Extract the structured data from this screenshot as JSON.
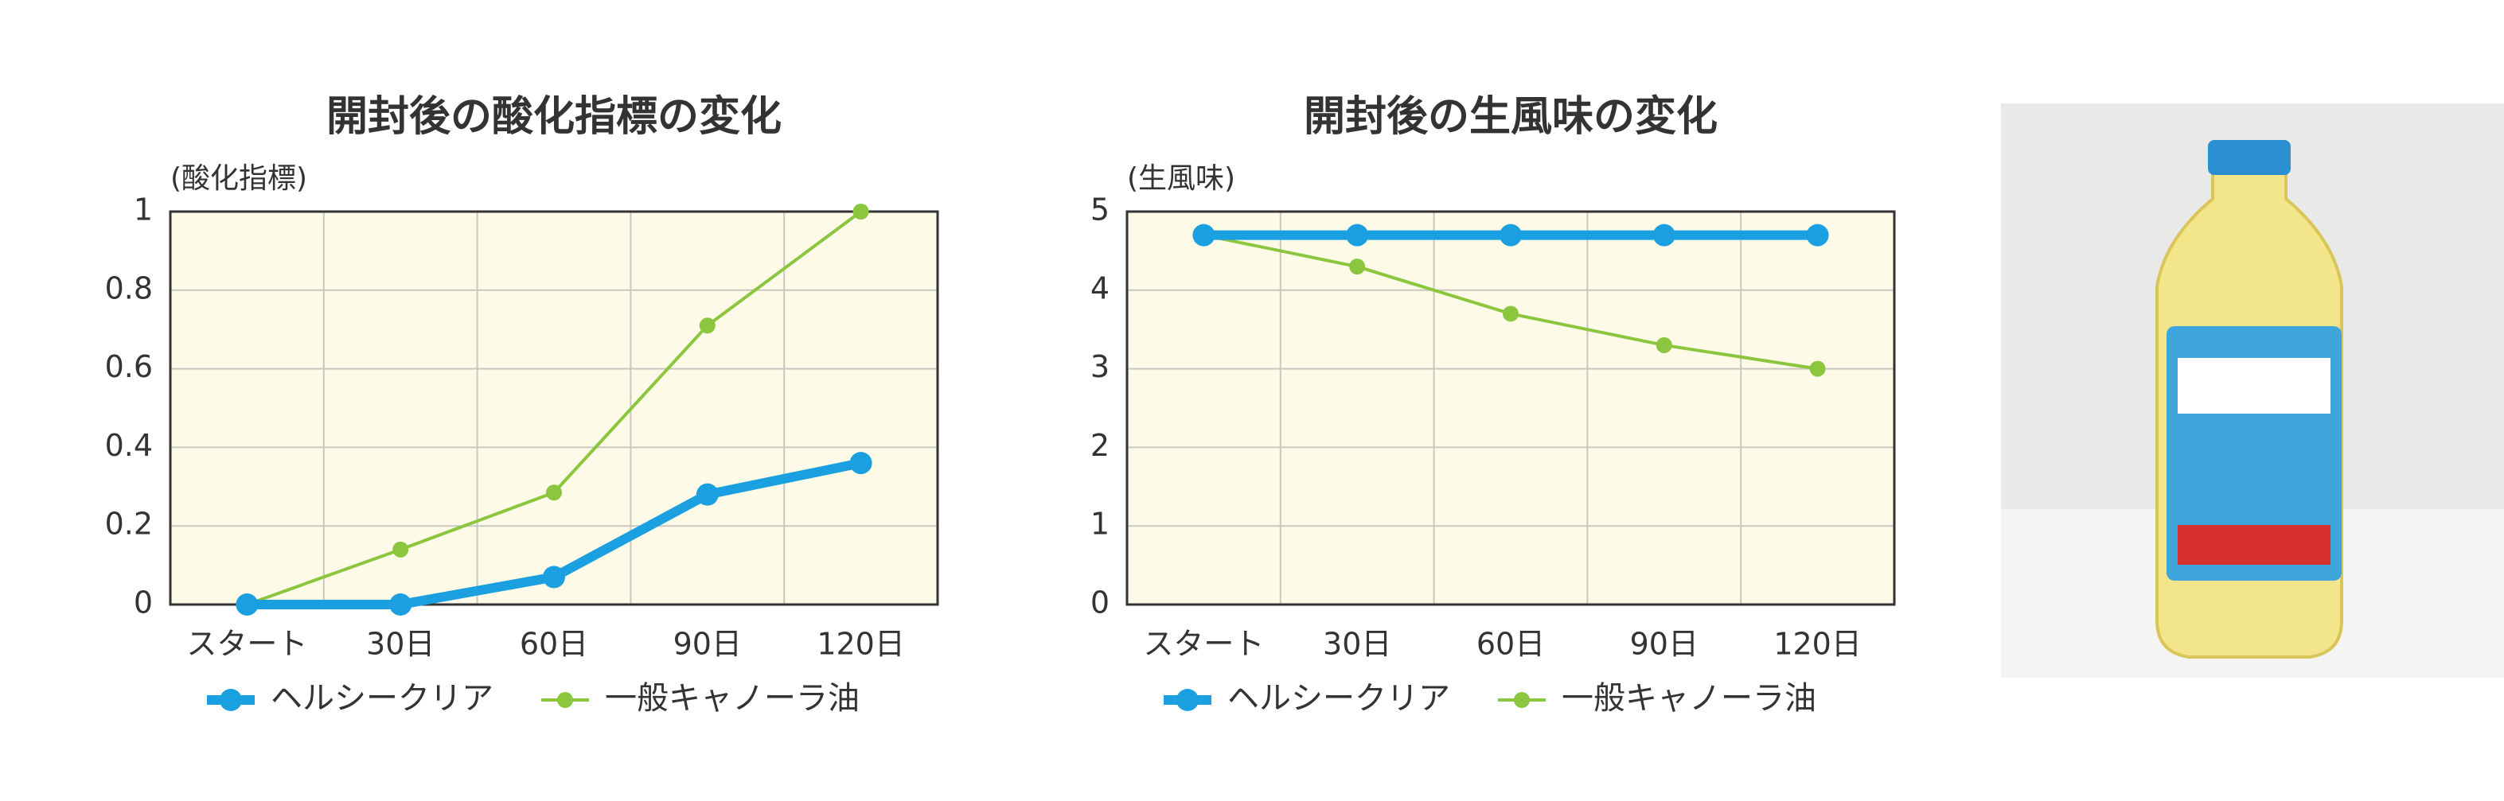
{
  "chart_data": [
    {
      "type": "line",
      "title": "開封後の酸化指標の変化",
      "y_label": "(酸化指標)",
      "categories": [
        "スタート",
        "30日",
        "60日",
        "90日",
        "120日"
      ],
      "series": [
        {
          "name": "ヘルシークリア",
          "color": "#1aa0e0",
          "values": [
            0,
            0,
            0.07,
            0.28,
            0.36
          ]
        },
        {
          "name": "一般キャノーラ油",
          "color": "#8cc63f",
          "values": [
            0,
            0.14,
            0.285,
            0.71,
            1.0
          ]
        }
      ],
      "ylim": [
        0,
        1
      ],
      "yticks": [
        0,
        0.2,
        0.4,
        0.6,
        0.8,
        1
      ],
      "grid": true,
      "legend": "bottom"
    },
    {
      "type": "line",
      "title": "開封後の生風味の変化",
      "y_label": "(生風味)",
      "categories": [
        "スタート",
        "30日",
        "60日",
        "90日",
        "120日"
      ],
      "series": [
        {
          "name": "ヘルシークリア",
          "color": "#1aa0e0",
          "values": [
            4.7,
            4.7,
            4.7,
            4.7,
            4.7
          ]
        },
        {
          "name": "一般キャノーラ油",
          "color": "#8cc63f",
          "values": [
            4.7,
            4.3,
            3.7,
            3.3,
            3.0
          ]
        }
      ],
      "ylim": [
        0,
        5
      ],
      "yticks": [
        0,
        1,
        2,
        3,
        4,
        5
      ],
      "grid": true,
      "legend": "bottom"
    }
  ]
}
